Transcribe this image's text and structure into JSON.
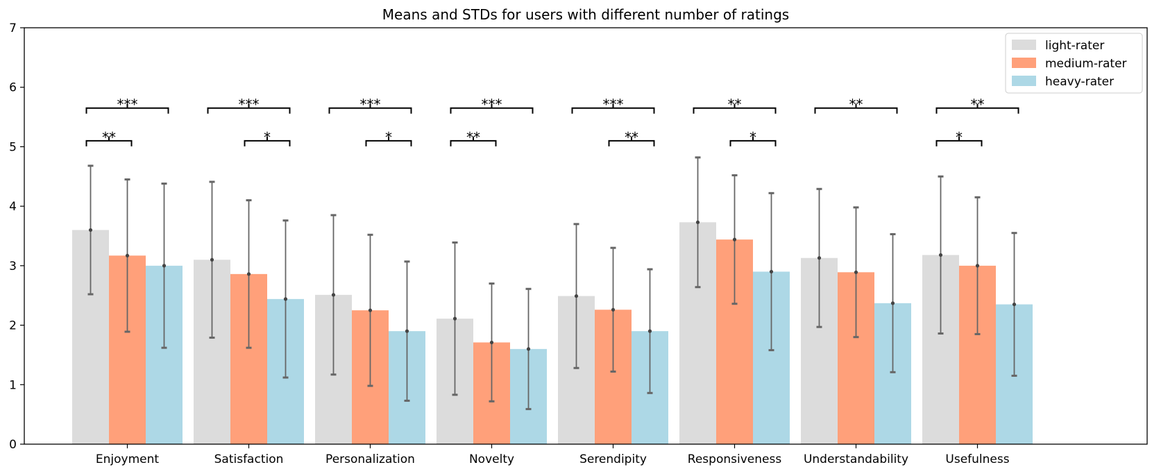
{
  "chart_data": {
    "type": "bar",
    "title": "Means and STDs for users with different number of ratings",
    "xlabel": "",
    "ylabel": "",
    "ylim": [
      0,
      7
    ],
    "yticks": [
      "0",
      "1",
      "2",
      "3",
      "4",
      "5",
      "6",
      "7"
    ],
    "categories": [
      "Enjoyment",
      "Satisfaction",
      "Personalization",
      "Novelty",
      "Serendipity",
      "Responsiveness",
      "Understandability",
      "Usefulness"
    ],
    "series": [
      {
        "name": "light-rater",
        "color": "#dcdcdc",
        "values": [
          3.6,
          3.1,
          2.51,
          2.11,
          2.49,
          3.73,
          3.13,
          3.18
        ],
        "std": [
          1.08,
          1.31,
          1.34,
          1.28,
          1.21,
          1.09,
          1.16,
          1.32
        ]
      },
      {
        "name": "medium-rater",
        "color": "#ffa07a",
        "values": [
          3.17,
          2.86,
          2.25,
          1.71,
          2.26,
          3.44,
          2.89,
          3.0
        ],
        "std": [
          1.28,
          1.24,
          1.27,
          0.99,
          1.04,
          1.08,
          1.09,
          1.15
        ]
      },
      {
        "name": "heavy-rater",
        "color": "#add8e6",
        "values": [
          3.0,
          2.44,
          1.9,
          1.6,
          1.9,
          2.9,
          2.37,
          2.35
        ],
        "std": [
          1.38,
          1.32,
          1.17,
          1.01,
          1.04,
          1.32,
          1.16,
          1.2
        ]
      }
    ],
    "significance": [
      {
        "category": 0,
        "from": 0,
        "to": 2,
        "label": "***",
        "level": 5.65
      },
      {
        "category": 0,
        "from": 0,
        "to": 1,
        "label": "**",
        "level": 5.1
      },
      {
        "category": 1,
        "from": 0,
        "to": 2,
        "label": "***",
        "level": 5.65
      },
      {
        "category": 1,
        "from": 1,
        "to": 2,
        "label": "*",
        "level": 5.1
      },
      {
        "category": 2,
        "from": 0,
        "to": 2,
        "label": "***",
        "level": 5.65
      },
      {
        "category": 2,
        "from": 1,
        "to": 2,
        "label": "*",
        "level": 5.1
      },
      {
        "category": 3,
        "from": 0,
        "to": 2,
        "label": "***",
        "level": 5.65
      },
      {
        "category": 3,
        "from": 0,
        "to": 1,
        "label": "**",
        "level": 5.1
      },
      {
        "category": 4,
        "from": 0,
        "to": 2,
        "label": "***",
        "level": 5.65
      },
      {
        "category": 4,
        "from": 1,
        "to": 2,
        "label": "**",
        "level": 5.1
      },
      {
        "category": 5,
        "from": 0,
        "to": 2,
        "label": "**",
        "level": 5.65
      },
      {
        "category": 5,
        "from": 1,
        "to": 2,
        "label": "*",
        "level": 5.1
      },
      {
        "category": 6,
        "from": 0,
        "to": 2,
        "label": "**",
        "level": 5.65
      },
      {
        "category": 7,
        "from": 0,
        "to": 2,
        "label": "**",
        "level": 5.65
      },
      {
        "category": 7,
        "from": 0,
        "to": 1,
        "label": "*",
        "level": 5.1
      }
    ],
    "legend_position": "top-right",
    "grid": false,
    "error_bar_color": "#666666"
  }
}
